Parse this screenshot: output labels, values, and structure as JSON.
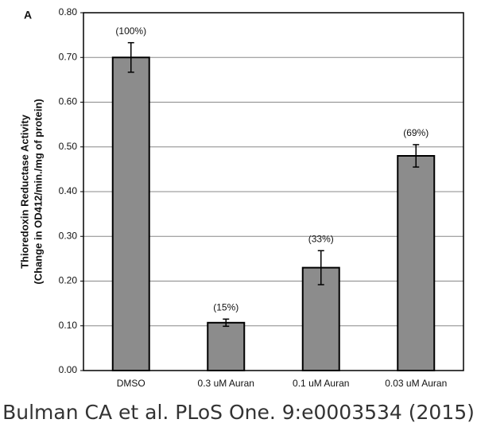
{
  "chart_data": {
    "type": "bar",
    "panel_label": "A",
    "y_label": [
      "Thioredoxin Reductase Activity",
      "(Change in OD412/min./mg of protein)"
    ],
    "categories": [
      "DMSO",
      "0.3 uM Auran",
      "0.1 uM Auran",
      "0.03 uM Auran"
    ],
    "values": [
      0.7,
      0.107,
      0.23,
      0.48
    ],
    "errors": [
      0.033,
      0.008,
      0.038,
      0.025
    ],
    "annotations": [
      "(100%)",
      "(15%)",
      "(33%)",
      "(69%)"
    ],
    "color": "#8c8c8c",
    "ylim": [
      0,
      0.8
    ],
    "yticks": [
      {
        "value": 0,
        "label": "0.00"
      },
      {
        "value": 0.1,
        "label": "0.10"
      },
      {
        "value": 0.2,
        "label": "0.20"
      },
      {
        "value": 0.3,
        "label": "0.30"
      },
      {
        "value": 0.4,
        "label": "0.40"
      },
      {
        "value": 0.5,
        "label": "0.50"
      },
      {
        "value": 0.6,
        "label": "0.60"
      },
      {
        "value": 0.7,
        "label": "0.70"
      },
      {
        "value": 0.8,
        "label": "0.80"
      }
    ],
    "grid": true
  },
  "caption": "Bulman CA et al. PLoS One. 9:e0003534 (2015)"
}
